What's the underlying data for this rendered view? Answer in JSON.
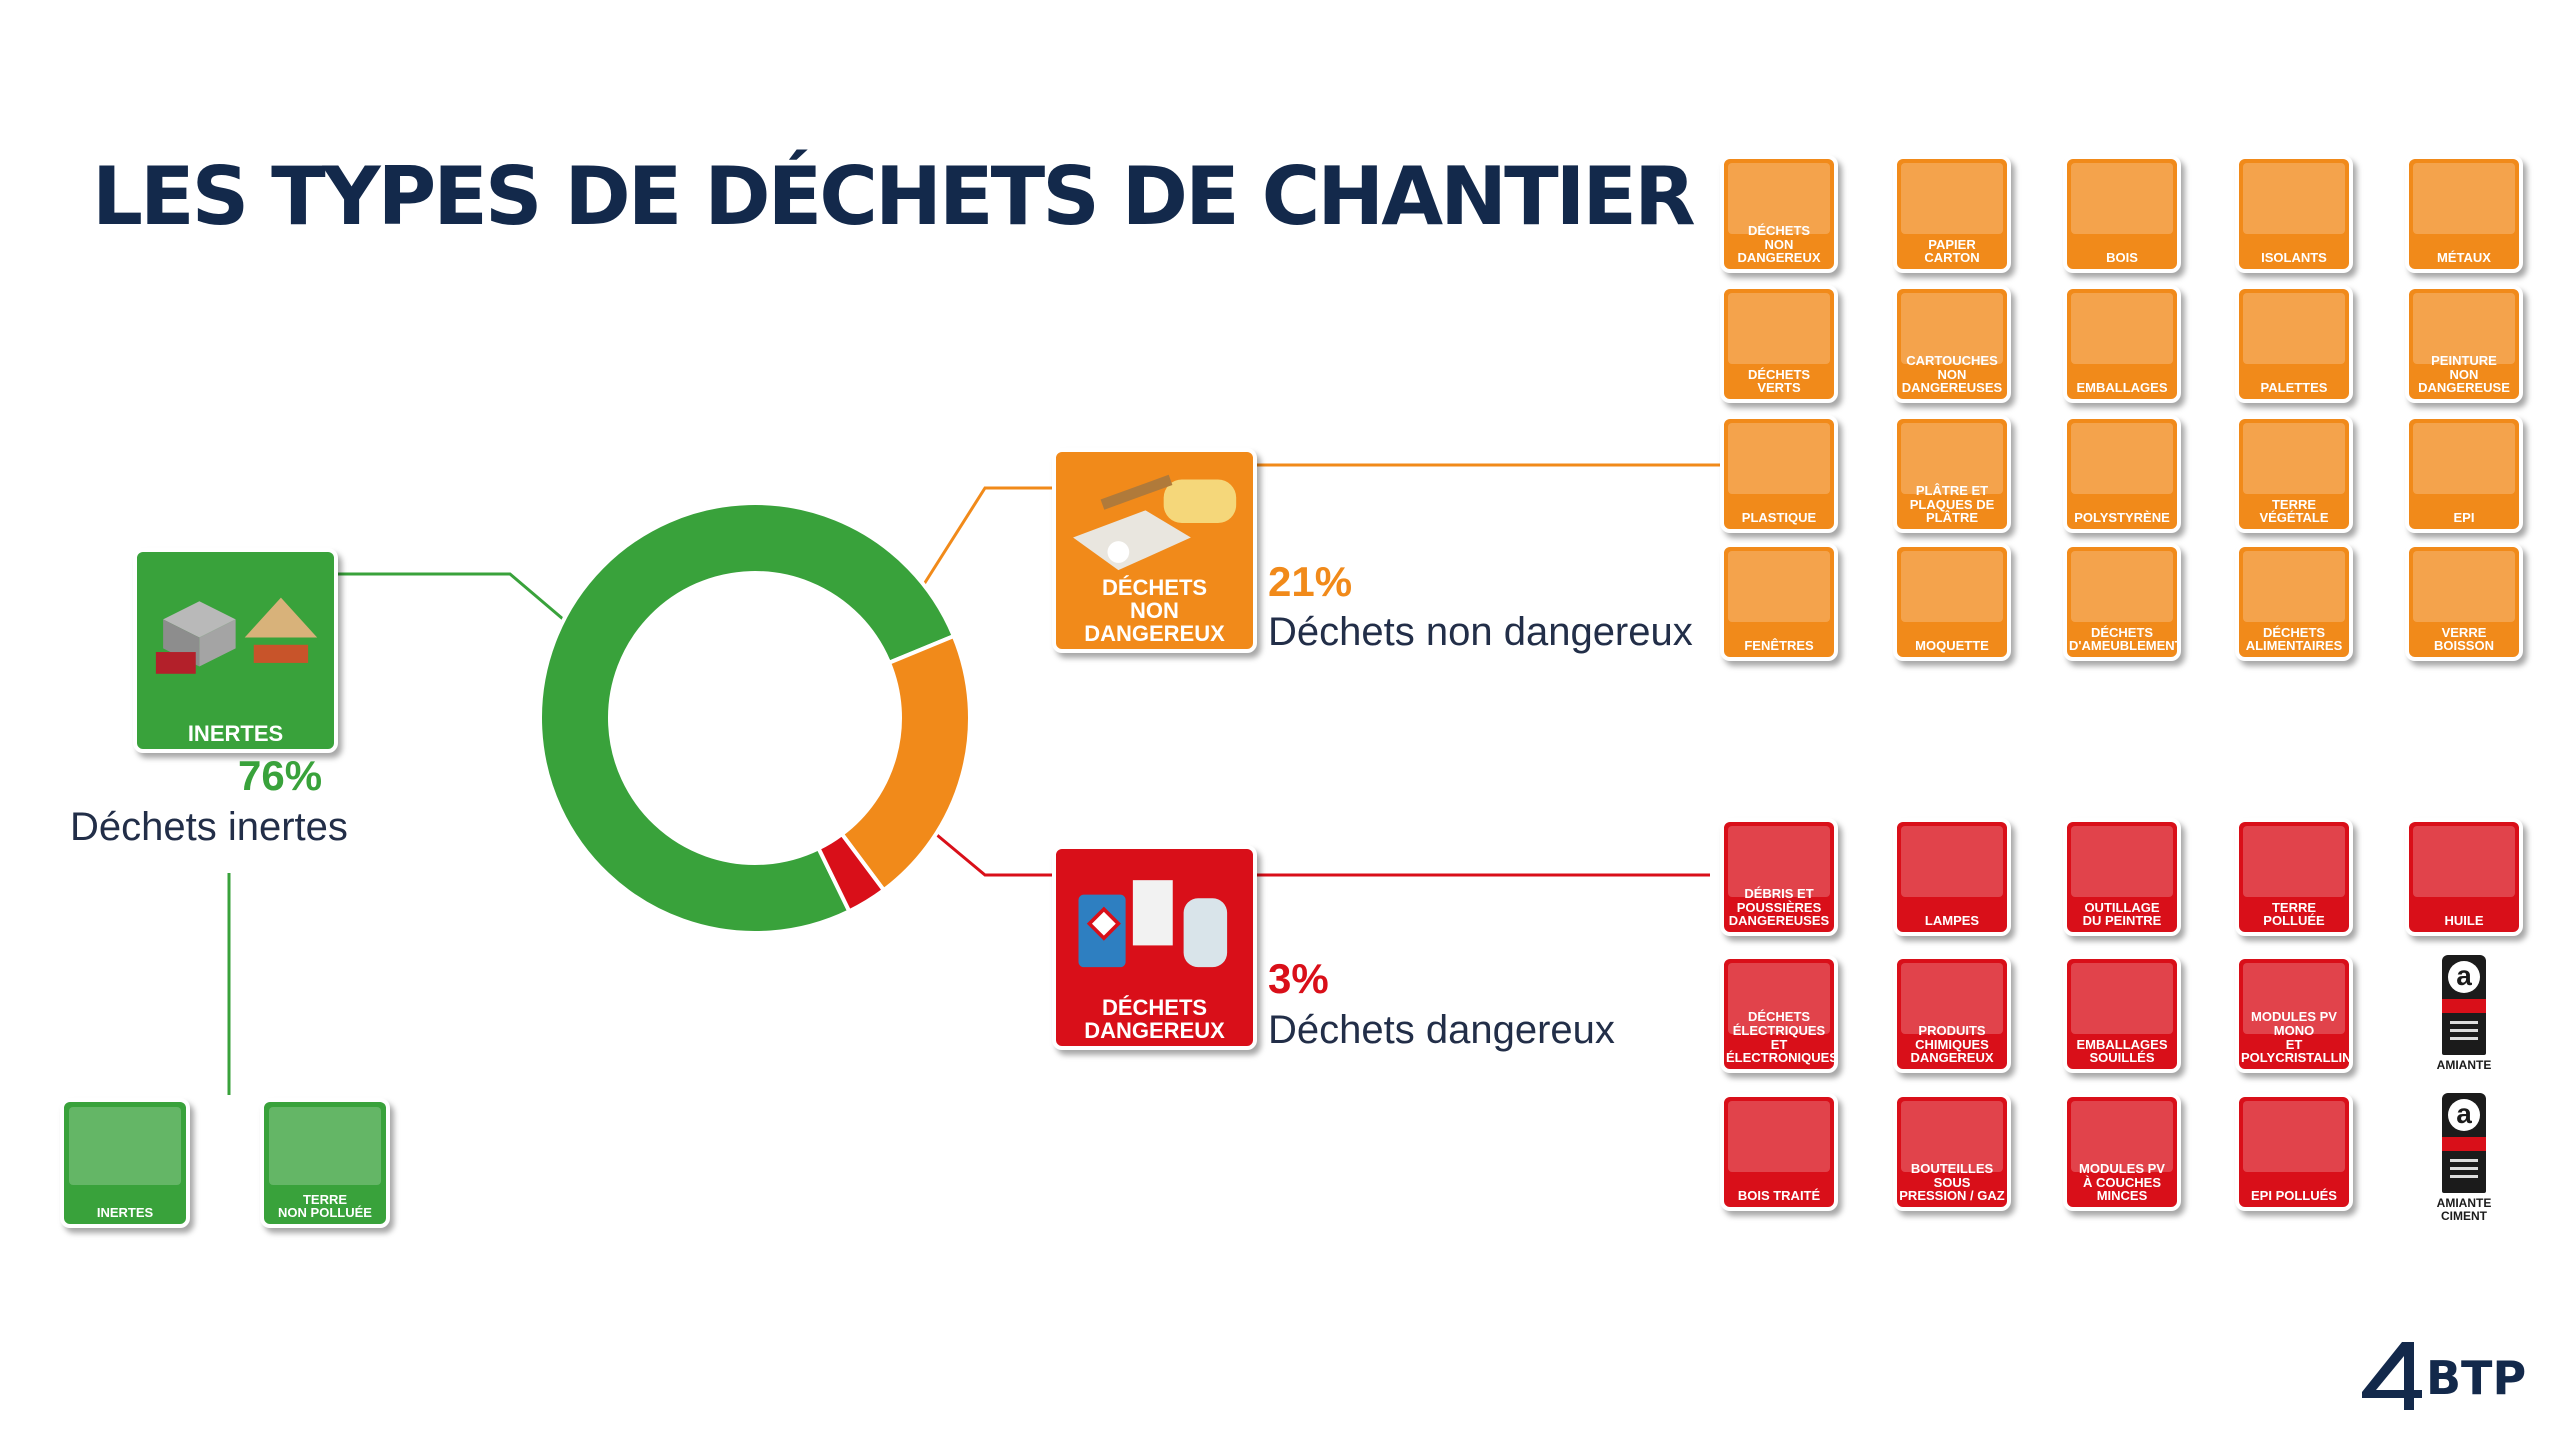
{
  "title": "LES TYPES DE DÉCHETS DE CHANTIER",
  "colors": {
    "inertes": "#39a23b",
    "non_dangereux": "#f18a1a",
    "dangereux": "#d90f19",
    "title": "#13294b"
  },
  "chart_data": {
    "type": "pie",
    "style": "donut",
    "slices": [
      {
        "label": "Déchets inertes",
        "value": 76,
        "color": "#39a23b"
      },
      {
        "label": "Déchets non dangereux",
        "value": 21,
        "color": "#f18a1a"
      },
      {
        "label": "Déchets dangereux",
        "value": 3,
        "color": "#d90f19"
      }
    ]
  },
  "categories": {
    "inertes": {
      "icon_label": "INERTES",
      "percent": "76%",
      "label": "Déchets inertes"
    },
    "non_dangereux": {
      "icon_label": "DÉCHETS\nNON DANGEREUX",
      "percent": "21%",
      "label": "Déchets non dangereux"
    },
    "dangereux": {
      "icon_label": "DÉCHETS\nDANGEREUX",
      "percent": "3%",
      "label": "Déchets dangereux"
    }
  },
  "inertes_tiles": [
    "INERTES",
    "TERRE\nNON POLLUÉE"
  ],
  "non_dangereux_tiles": [
    "DÉCHETS\nNON DANGEREUX",
    "PAPIER\nCARTON",
    "BOIS",
    "ISOLANTS",
    "MÉTAUX",
    "DÉCHETS VERTS",
    "CARTOUCHES\nNON DANGEREUSES",
    "EMBALLAGES",
    "PALETTES",
    "PEINTURE\nNON DANGEREUSE",
    "PLASTIQUE",
    "PLÂTRE ET\nPLAQUES DE PLÂTRE",
    "POLYSTYRÈNE",
    "TERRE\nVÉGÉTALE",
    "EPI",
    "FENÊTRES",
    "MOQUETTE",
    "DÉCHETS\nD'AMEUBLEMENT",
    "DÉCHETS\nALIMENTAIRES",
    "VERRE\nBOISSON"
  ],
  "dangereux_tiles": [
    "DÉBRIS ET POUSSIÈRES\nDANGEREUSES",
    "LAMPES",
    "OUTILLAGE\nDU PEINTRE",
    "TERRE\nPOLLUÉE",
    "HUILE",
    "DÉCHETS ÉLECTRIQUES\nET ÉLECTRONIQUES",
    "PRODUITS CHIMIQUES\nDANGEREUX",
    "EMBALLAGES\nSOUILLÉS",
    "MODULES PV MONO\nET POLYCRISTALLINS",
    "AMIANTE",
    "BOIS TRAITÉ",
    "BOUTEILLES SOUS\nPRESSION / GAZ",
    "MODULES PV\nÀ COUCHES MINCES",
    "EPI POLLUÉS",
    "AMIANTE\nCIMENT"
  ],
  "logo": {
    "text": "BTP"
  }
}
